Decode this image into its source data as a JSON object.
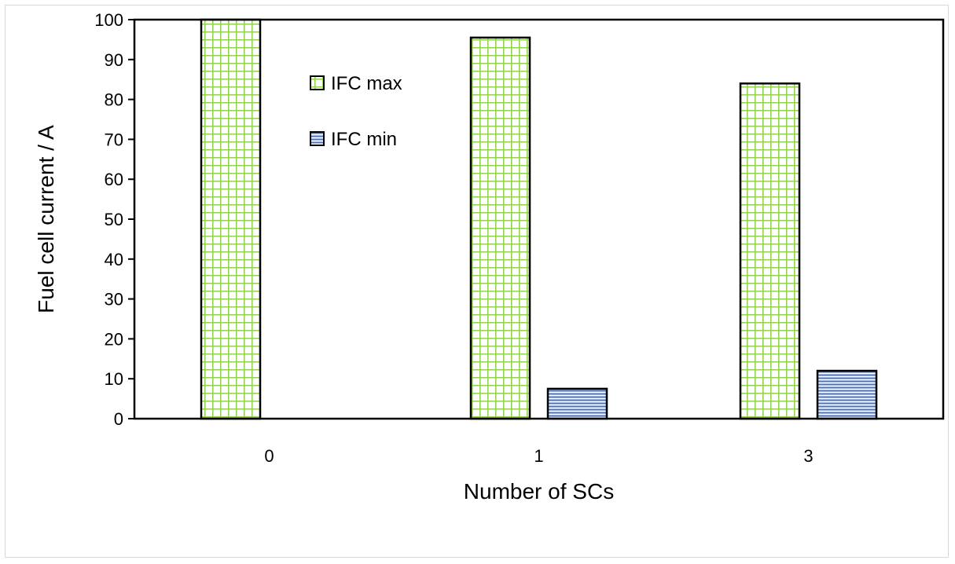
{
  "chart_data": {
    "type": "bar",
    "categories": [
      "0",
      "1",
      "3"
    ],
    "series": [
      {
        "name": "IFC max",
        "values": [
          100,
          95.5,
          84
        ],
        "color": "#92d050",
        "pattern": "grid"
      },
      {
        "name": "IFC min",
        "values": [
          null,
          7.5,
          12
        ],
        "color": "#4472c4",
        "pattern": "horizontal-lines"
      }
    ],
    "title": "",
    "xlabel": "Number of SCs",
    "ylabel": "Fuel cell current / A",
    "ylim": [
      0,
      100
    ],
    "yticks": [
      0,
      10,
      20,
      30,
      40,
      50,
      60,
      70,
      80,
      90,
      100
    ],
    "grid": false,
    "legend_position": "top-left-inside"
  }
}
